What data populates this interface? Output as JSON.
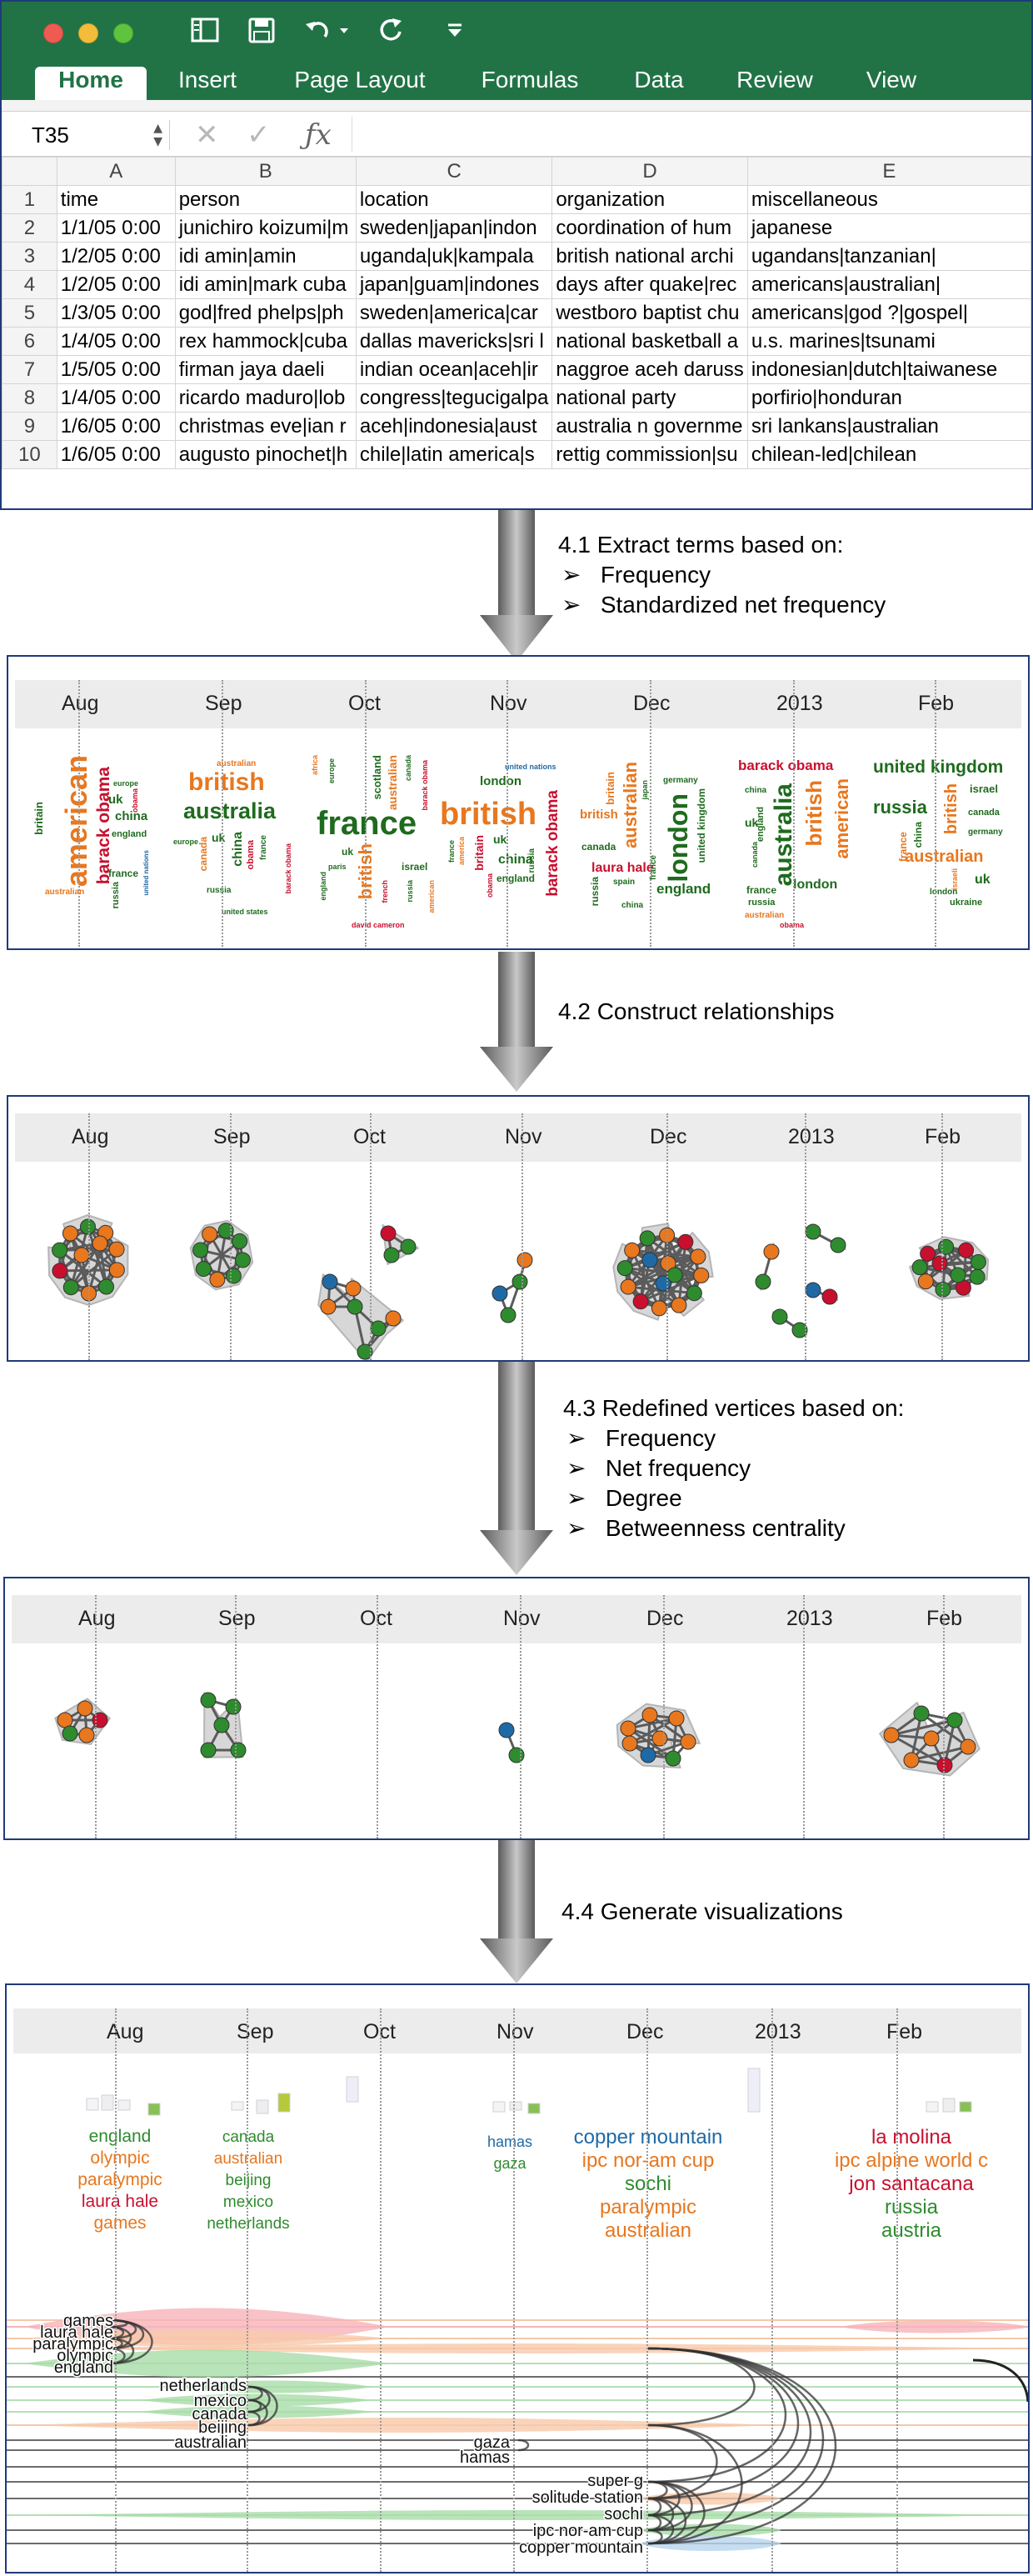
{
  "excel": {
    "tabs": [
      "Home",
      "Insert",
      "Page Layout",
      "Formulas",
      "Data",
      "Review",
      "View"
    ],
    "active_tab": "Home",
    "name_box": "T35",
    "columns": [
      "A",
      "B",
      "C",
      "D",
      "E"
    ],
    "rows": [
      {
        "n": "1",
        "cells": [
          "time",
          "person",
          "location",
          "organization",
          "miscellaneous"
        ]
      },
      {
        "n": "2",
        "cells": [
          "1/1/05 0:00",
          "junichiro koizumi|m",
          "sweden|japan|indon",
          "coordination of hum",
          "japanese"
        ]
      },
      {
        "n": "3",
        "cells": [
          "1/2/05 0:00",
          "idi amin|amin",
          "uganda|uk|kampala",
          "british national archi",
          "ugandans|tanzanian|"
        ]
      },
      {
        "n": "4",
        "cells": [
          "1/2/05 0:00",
          "idi amin|mark cuba",
          "japan|guam|indones",
          "days after quake|rec",
          "americans|australian|"
        ]
      },
      {
        "n": "5",
        "cells": [
          "1/3/05 0:00",
          "god|fred phelps|ph",
          "sweden|america|car",
          "westboro baptist chu",
          "americans|god ?|gospel|"
        ]
      },
      {
        "n": "6",
        "cells": [
          "1/4/05 0:00",
          "rex hammock|cuba",
          "dallas mavericks|sri l",
          "national basketball a",
          "u.s. marines|tsunami"
        ]
      },
      {
        "n": "7",
        "cells": [
          "1/5/05 0:00",
          "firman jaya daeli",
          "indian ocean|aceh|ir",
          "naggroe aceh daruss",
          "indonesian|dutch|taiwanese"
        ]
      },
      {
        "n": "8",
        "cells": [
          "1/4/05 0:00",
          "ricardo maduro|lob",
          "congress|tegucigalpa",
          "national party",
          "porfirio|honduran"
        ]
      },
      {
        "n": "9",
        "cells": [
          "1/6/05 0:00",
          "christmas eve|ian r",
          "aceh|indonesia|aust",
          "australia n governme",
          "sri lankans|australian"
        ]
      },
      {
        "n": "10",
        "cells": [
          "1/6/05 0:00",
          "augusto pinochet|h",
          "chile|latin america|s",
          "rettig commission|su",
          "chilean-led|chilean"
        ]
      }
    ]
  },
  "steps": {
    "s1": {
      "title": "4.1 Extract terms based on:",
      "bullets": [
        "Frequency",
        "Standardized net frequency"
      ]
    },
    "s2": {
      "title": "4.2 Construct relationships"
    },
    "s3": {
      "title": "4.3 Redefined vertices based on:",
      "bullets": [
        "Frequency",
        "Net frequency",
        "Degree",
        "Betweenness centrality"
      ]
    },
    "s4": {
      "title": "4.4 Generate visualizations"
    }
  },
  "bullet_glyph": "➢",
  "timeline": {
    "months": [
      "Aug",
      "Sep",
      "Oct",
      "Nov",
      "Dec",
      "2013",
      "Feb"
    ]
  },
  "colors": {
    "excel_green": "#217346",
    "green": "#2e8b2e",
    "orange": "#e8771e",
    "red": "#c8102e",
    "blue": "#1f6aa5",
    "dark_green": "#1e6b1e",
    "border": "#1f3a7a"
  },
  "clouds": {
    "c1": [
      "american",
      "barack obama",
      "britain",
      "australian",
      "china",
      "france",
      "uk",
      "england",
      "united nations",
      "russia",
      "europe",
      "obama"
    ],
    "c2": [
      "british",
      "australia",
      "australian",
      "china",
      "uk",
      "canada",
      "europe",
      "russia",
      "france",
      "barack obama",
      "obama",
      "united states"
    ],
    "c3": [
      "france",
      "british",
      "australian",
      "scotland",
      "israel",
      "uk",
      "africa",
      "europe",
      "paris",
      "barack obama",
      "david cameron",
      "canada",
      "england",
      "russia",
      "french",
      "american"
    ],
    "c4": [
      "british",
      "london",
      "united nations",
      "uk",
      "china",
      "britain",
      "barack obama",
      "england",
      "russia",
      "america",
      "france",
      "obama"
    ],
    "c5": [
      "london",
      "australian",
      "british",
      "britain",
      "germany",
      "laura hale",
      "england",
      "canada",
      "spain",
      "china",
      "russia",
      "united kingdom",
      "france",
      "japan"
    ],
    "c6": [
      "barack obama",
      "australia",
      "british",
      "american",
      "london",
      "china",
      "uk",
      "england",
      "france",
      "russia",
      "australian",
      "obama",
      "canada"
    ],
    "c7": [
      "united kingdom",
      "russia",
      "australian",
      "british",
      "israel",
      "canada",
      "germany",
      "china",
      "france",
      "uk",
      "ukraine",
      "london",
      "israeli"
    ]
  },
  "viz": {
    "group_aug": {
      "labels": [
        "england",
        "olympic",
        "paralympic",
        "laura hale",
        "games"
      ],
      "colors": [
        "#2e8b2e",
        "#e8771e",
        "#e8771e",
        "#c8102e",
        "#e8771e"
      ]
    },
    "group_sep": {
      "labels": [
        "canada",
        "australian",
        "beijing",
        "mexico",
        "netherlands"
      ],
      "colors": [
        "#2e8b2e",
        "#e8771e",
        "#2e8b2e",
        "#2e8b2e",
        "#2e8b2e"
      ]
    },
    "group_nov": {
      "labels": [
        "hamas",
        "gaza"
      ],
      "colors": [
        "#1f6aa5",
        "#2e8b2e"
      ]
    },
    "group_dec": {
      "labels": [
        "copper mountain",
        "ipc nor-am cup",
        "sochi",
        "paralympic",
        "australian"
      ],
      "colors": [
        "#1f6aa5",
        "#e8771e",
        "#2e8b2e",
        "#e8771e",
        "#e8771e"
      ]
    },
    "group_feb": {
      "labels": [
        "la molina",
        "ipc alpine world c",
        "jon santacana",
        "russia",
        "austria"
      ],
      "colors": [
        "#c8102e",
        "#e8771e",
        "#c8102e",
        "#2e8b2e",
        "#2e8b2e"
      ]
    },
    "stream_labels_a": [
      "games",
      "laura hale",
      "paralympic",
      "olympic",
      "england"
    ],
    "stream_labels_b": [
      "netherlands",
      "mexico",
      "canada",
      "beijing",
      "australian"
    ],
    "stream_labels_c": [
      "gaza",
      "hamas"
    ],
    "stream_labels_d": [
      "super g",
      "solitude station",
      "sochi",
      "ipc nor-am cup",
      "copper mountain"
    ]
  }
}
